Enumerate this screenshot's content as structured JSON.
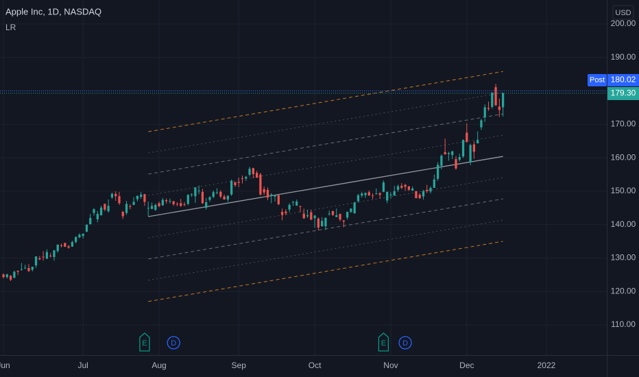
{
  "chart_data": {
    "type": "candlestick",
    "title": "Apple Inc, 1D, NASDAQ",
    "indicator": "LR",
    "currency": "USD",
    "up_color": "#26a69a",
    "down_color": "#ef5350",
    "xlim": [
      -0.95,
      166.67
    ],
    "ylim": [
      100.98,
      207.18
    ],
    "xticks": [
      {
        "value": 0,
        "label": "Jun"
      },
      {
        "value": 22,
        "label": "Jul"
      },
      {
        "value": 43,
        "label": "Aug"
      },
      {
        "value": 65,
        "label": "Sep"
      },
      {
        "value": 86,
        "label": "Oct"
      },
      {
        "value": 107,
        "label": "Nov"
      },
      {
        "value": 128,
        "label": "Dec"
      },
      {
        "value": 150,
        "label": "2022"
      }
    ],
    "yticks": [
      {
        "value": 110,
        "label": "110.00"
      },
      {
        "value": 120,
        "label": "120.00"
      },
      {
        "value": 130,
        "label": "130.00"
      },
      {
        "value": 140,
        "label": "140.00"
      },
      {
        "value": 150,
        "label": "150.00"
      },
      {
        "value": 160,
        "label": "160.00"
      },
      {
        "value": 170,
        "label": "170.00"
      },
      {
        "value": 180,
        "label": "180.00"
      },
      {
        "value": 190,
        "label": "190.00"
      },
      {
        "value": 200,
        "label": "200.00"
      }
    ],
    "grid": true,
    "ohlc": [
      [
        125.1,
        125.4,
        123.9,
        124.3
      ],
      [
        124.3,
        125.3,
        123.9,
        125.1
      ],
      [
        124.7,
        124.9,
        123.1,
        123.5
      ],
      [
        124.1,
        126.2,
        123.9,
        125.9
      ],
      [
        126.2,
        126.3,
        124.9,
        125.9
      ],
      [
        126.6,
        128.5,
        126.2,
        126.7
      ],
      [
        127.0,
        128.0,
        126.7,
        127.1
      ],
      [
        127.0,
        128.2,
        125.9,
        126.1
      ],
      [
        126.5,
        127.4,
        126.0,
        127.4
      ],
      [
        127.8,
        130.5,
        127.1,
        130.5
      ],
      [
        129.9,
        130.6,
        129.4,
        129.6
      ],
      [
        130.4,
        132.1,
        129.2,
        130.2
      ],
      [
        129.8,
        132.6,
        129.7,
        131.8
      ],
      [
        130.7,
        131.5,
        130.2,
        130.5
      ],
      [
        130.3,
        132.4,
        129.2,
        132.3
      ],
      [
        132.1,
        134.1,
        131.6,
        134.0
      ],
      [
        133.8,
        134.3,
        133.2,
        133.7
      ],
      [
        134.5,
        134.6,
        133.3,
        133.4
      ],
      [
        133.5,
        133.9,
        132.8,
        133.1
      ],
      [
        133.4,
        135.2,
        133.4,
        134.8
      ],
      [
        134.8,
        136.5,
        134.4,
        136.3
      ],
      [
        136.2,
        137.4,
        135.9,
        137.0
      ],
      [
        136.6,
        137.3,
        135.8,
        137.3
      ],
      [
        137.9,
        140.0,
        137.7,
        140.0
      ],
      [
        140.1,
        143.2,
        140.1,
        142.0
      ],
      [
        143.5,
        144.9,
        142.7,
        144.6
      ],
      [
        141.6,
        144.1,
        140.7,
        143.2
      ],
      [
        142.8,
        145.7,
        142.7,
        145.1
      ],
      [
        146.2,
        146.3,
        144.0,
        144.5
      ],
      [
        144.0,
        147.5,
        143.6,
        145.6
      ],
      [
        148.1,
        149.6,
        147.7,
        149.2
      ],
      [
        149.2,
        150.0,
        147.1,
        148.5
      ],
      [
        148.5,
        149.8,
        145.9,
        146.4
      ],
      [
        143.8,
        144.1,
        141.7,
        142.5
      ],
      [
        143.5,
        147.1,
        142.9,
        146.2
      ],
      [
        145.5,
        146.1,
        144.6,
        145.4
      ],
      [
        145.9,
        148.2,
        145.8,
        146.8
      ],
      [
        147.6,
        148.7,
        146.9,
        148.6
      ],
      [
        148.3,
        149.8,
        147.7,
        149.0
      ],
      [
        149.1,
        149.2,
        145.6,
        146.8
      ],
      [
        144.8,
        146.9,
        142.5,
        145.0
      ],
      [
        144.7,
        146.6,
        144.6,
        145.6
      ],
      [
        144.4,
        146.3,
        144.1,
        145.9
      ],
      [
        146.4,
        146.9,
        145.2,
        145.5
      ],
      [
        145.8,
        148.0,
        145.6,
        147.4
      ],
      [
        147.3,
        147.8,
        146.3,
        147.0
      ],
      [
        146.9,
        147.8,
        146.3,
        147.1
      ],
      [
        147.0,
        147.1,
        145.6,
        146.1
      ],
      [
        146.2,
        146.7,
        145.5,
        146.1
      ],
      [
        146.4,
        147.7,
        145.3,
        145.6
      ],
      [
        146.1,
        146.7,
        145.5,
        145.9
      ],
      [
        146.2,
        149.1,
        145.8,
        148.9
      ],
      [
        148.97,
        149.4,
        148.3,
        149.1
      ],
      [
        148.5,
        151.2,
        146.5,
        151.1
      ],
      [
        150.2,
        151.7,
        149.1,
        150.2
      ],
      [
        149.8,
        150.7,
        146.2,
        146.4
      ],
      [
        145.0,
        148.0,
        144.5,
        146.7
      ],
      [
        147.4,
        148.5,
        146.8,
        148.2
      ],
      [
        148.3,
        150.2,
        147.9,
        149.7
      ],
      [
        149.5,
        150.9,
        149.1,
        149.6
      ],
      [
        149.8,
        150.3,
        147.9,
        148.4
      ],
      [
        148.4,
        149.0,
        147.5,
        147.5
      ],
      [
        147.5,
        148.8,
        146.8,
        148.6
      ],
      [
        149.0,
        153.5,
        148.6,
        153.1
      ],
      [
        152.7,
        152.8,
        151.3,
        151.8
      ],
      [
        152.8,
        154.1,
        151.2,
        152.5
      ],
      [
        153.9,
        154.7,
        152.3,
        153.7
      ],
      [
        153.8,
        154.6,
        153.1,
        154.3
      ],
      [
        154.9,
        157.3,
        154.4,
        156.7
      ],
      [
        156.9,
        157.0,
        153.9,
        155.1
      ],
      [
        155.5,
        156.1,
        153.9,
        154.1
      ],
      [
        155.0,
        155.5,
        148.7,
        149.0
      ],
      [
        150.6,
        151.4,
        148.8,
        149.6
      ],
      [
        150.4,
        151.1,
        147.3,
        148.1
      ],
      [
        148.6,
        149.4,
        146.4,
        149.0
      ],
      [
        148.4,
        148.9,
        146.9,
        148.8
      ],
      [
        148.8,
        148.8,
        145.8,
        146.1
      ],
      [
        143.8,
        144.8,
        141.3,
        142.9
      ],
      [
        143.9,
        144.6,
        142.8,
        143.4
      ],
      [
        144.5,
        146.4,
        143.7,
        145.9
      ],
      [
        146.7,
        147.1,
        145.6,
        146.8
      ],
      [
        145.7,
        147.5,
        145.6,
        146.9
      ],
      [
        145.5,
        145.7,
        143.7,
        145.4
      ],
      [
        143.3,
        144.8,
        141.7,
        141.9
      ],
      [
        142.5,
        144.5,
        142.0,
        142.8
      ],
      [
        143.7,
        144.4,
        141.3,
        141.5
      ],
      [
        141.9,
        142.9,
        139.1,
        142.7
      ],
      [
        141.8,
        142.2,
        138.3,
        139.1
      ],
      [
        139.5,
        142.2,
        139.4,
        141.1
      ],
      [
        139.5,
        142.2,
        138.4,
        142.0
      ],
      [
        143.1,
        144.2,
        142.7,
        143.3
      ],
      [
        144.0,
        144.2,
        142.6,
        142.9
      ],
      [
        142.3,
        144.8,
        142.2,
        142.8
      ],
      [
        143.2,
        143.3,
        141.0,
        141.5
      ],
      [
        141.2,
        141.4,
        139.2,
        140.9
      ],
      [
        142.1,
        143.9,
        141.5,
        143.8
      ],
      [
        143.8,
        144.9,
        143.5,
        144.8
      ],
      [
        143.4,
        146.8,
        143.2,
        146.6
      ],
      [
        147.0,
        149.2,
        146.6,
        148.8
      ],
      [
        148.7,
        149.8,
        148.1,
        149.3
      ],
      [
        148.8,
        149.6,
        148.0,
        149.5
      ],
      [
        149.7,
        150.2,
        148.6,
        148.7
      ],
      [
        148.7,
        149.4,
        147.6,
        148.6
      ],
      [
        149.3,
        150.8,
        149.0,
        149.3
      ],
      [
        149.4,
        149.7,
        147.8,
        148.9
      ],
      [
        149.8,
        153.2,
        149.7,
        152.6
      ],
      [
        147.2,
        149.9,
        146.4,
        149.8
      ],
      [
        148.99,
        149.7,
        147.8,
        149.0
      ],
      [
        148.7,
        151.6,
        148.6,
        150.0
      ],
      [
        150.4,
        151.97,
        149.8,
        151.5
      ],
      [
        151.6,
        152.4,
        150.6,
        151.0
      ],
      [
        151.9,
        152.2,
        150.1,
        151.3
      ],
      [
        151.4,
        151.6,
        150.1,
        150.4
      ],
      [
        150.2,
        151.4,
        150.1,
        150.8
      ],
      [
        150.0,
        150.1,
        147.9,
        147.9
      ],
      [
        148.96,
        149.4,
        147.7,
        147.9
      ],
      [
        148.4,
        150.4,
        147.5,
        150.0
      ],
      [
        150.4,
        151.9,
        149.4,
        150.0
      ],
      [
        149.9,
        151.5,
        149.3,
        151.0
      ],
      [
        151.0,
        155.0,
        150.99,
        153.5
      ],
      [
        153.7,
        158.7,
        153.1,
        157.9
      ],
      [
        157.6,
        161.0,
        156.5,
        160.6
      ],
      [
        161.7,
        165.7,
        161.0,
        161.0
      ],
      [
        161.1,
        161.8,
        159.1,
        161.4
      ],
      [
        160.8,
        162.1,
        159.6,
        161.9
      ],
      [
        159.6,
        160.5,
        156.4,
        156.8
      ],
      [
        159.4,
        161.2,
        158.8,
        160.2
      ],
      [
        160.4,
        165.5,
        159.9,
        165.3
      ],
      [
        167.5,
        170.3,
        164.5,
        164.8
      ],
      [
        158.7,
        164.2,
        157.8,
        163.8
      ],
      [
        164.0,
        164.96,
        159.7,
        161.8
      ],
      [
        164.3,
        167.9,
        164.3,
        165.3
      ],
      [
        169.1,
        171.6,
        168.3,
        171.2
      ],
      [
        172.1,
        175.96,
        170.7,
        175.1
      ],
      [
        174.9,
        176.8,
        174.0,
        174.6
      ],
      [
        175.2,
        179.6,
        174.7,
        179.5
      ],
      [
        181.1,
        182.1,
        175.5,
        175.7
      ],
      [
        175.3,
        177.7,
        172.2,
        174.3
      ],
      [
        175.1,
        179.5,
        172.3,
        179.3
      ]
    ],
    "channel": {
      "x": [
        40,
        138
      ],
      "center": [
        142.4,
        160.4
      ],
      "offsets": [
        -25.4,
        -19.05,
        -12.7,
        -6.35,
        6.35,
        12.7,
        19.05,
        25.4
      ]
    },
    "post": {
      "name": "Post",
      "value": 180.02,
      "label": "180.02",
      "color": "#2962ff"
    },
    "last": {
      "value": 179.3,
      "label": "179.30",
      "color": "#26a69a"
    },
    "events": {
      "labels": [
        "E",
        "D",
        "E",
        "D"
      ],
      "x": [
        39,
        47,
        105,
        111
      ]
    }
  }
}
